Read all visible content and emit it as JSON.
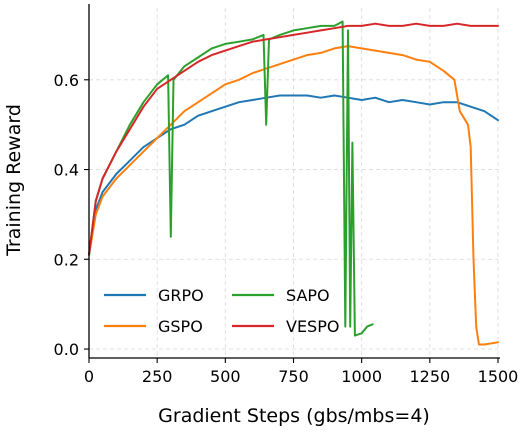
{
  "chart_data": {
    "type": "line",
    "xlabel": "Gradient Steps (gbs/mbs=4)",
    "ylabel": "Training Reward",
    "xlim": [
      0,
      1500
    ],
    "ylim": [
      -0.02,
      0.76
    ],
    "xticks": [
      0,
      250,
      500,
      750,
      1000,
      1250,
      1500
    ],
    "yticks": [
      0.0,
      0.2,
      0.4,
      0.6
    ],
    "xtick_labels": [
      "0",
      "250",
      "500",
      "750",
      "1000",
      "1250",
      "1500"
    ],
    "ytick_labels": [
      "0.0",
      "0.2",
      "0.4",
      "0.6"
    ],
    "grid": true,
    "legend_position": "lower-left",
    "series": [
      {
        "name": "GRPO",
        "color": "#1f77b4",
        "points": [
          [
            0,
            0.21
          ],
          [
            25,
            0.31
          ],
          [
            50,
            0.35
          ],
          [
            100,
            0.39
          ],
          [
            150,
            0.42
          ],
          [
            200,
            0.45
          ],
          [
            250,
            0.47
          ],
          [
            300,
            0.49
          ],
          [
            350,
            0.5
          ],
          [
            400,
            0.52
          ],
          [
            450,
            0.53
          ],
          [
            500,
            0.54
          ],
          [
            550,
            0.55
          ],
          [
            600,
            0.555
          ],
          [
            650,
            0.56
          ],
          [
            700,
            0.565
          ],
          [
            750,
            0.565
          ],
          [
            800,
            0.565
          ],
          [
            850,
            0.56
          ],
          [
            900,
            0.565
          ],
          [
            950,
            0.56
          ],
          [
            1000,
            0.555
          ],
          [
            1050,
            0.56
          ],
          [
            1100,
            0.55
          ],
          [
            1150,
            0.555
          ],
          [
            1200,
            0.55
          ],
          [
            1250,
            0.545
          ],
          [
            1300,
            0.55
          ],
          [
            1350,
            0.55
          ],
          [
            1400,
            0.54
          ],
          [
            1450,
            0.53
          ],
          [
            1500,
            0.51
          ]
        ]
      },
      {
        "name": "GSPO",
        "color": "#ff7f0e",
        "points": [
          [
            0,
            0.21
          ],
          [
            25,
            0.3
          ],
          [
            50,
            0.34
          ],
          [
            100,
            0.38
          ],
          [
            150,
            0.41
          ],
          [
            200,
            0.44
          ],
          [
            250,
            0.47
          ],
          [
            300,
            0.5
          ],
          [
            350,
            0.53
          ],
          [
            400,
            0.55
          ],
          [
            450,
            0.57
          ],
          [
            500,
            0.59
          ],
          [
            550,
            0.6
          ],
          [
            600,
            0.615
          ],
          [
            650,
            0.625
          ],
          [
            700,
            0.635
          ],
          [
            750,
            0.645
          ],
          [
            800,
            0.655
          ],
          [
            850,
            0.66
          ],
          [
            900,
            0.67
          ],
          [
            950,
            0.675
          ],
          [
            1000,
            0.67
          ],
          [
            1050,
            0.665
          ],
          [
            1100,
            0.66
          ],
          [
            1150,
            0.655
          ],
          [
            1200,
            0.645
          ],
          [
            1250,
            0.64
          ],
          [
            1300,
            0.62
          ],
          [
            1340,
            0.6
          ],
          [
            1360,
            0.53
          ],
          [
            1390,
            0.5
          ],
          [
            1400,
            0.45
          ],
          [
            1410,
            0.2
          ],
          [
            1420,
            0.05
          ],
          [
            1430,
            0.01
          ],
          [
            1450,
            0.01
          ],
          [
            1500,
            0.015
          ]
        ]
      },
      {
        "name": "SAPO",
        "color": "#2ca02c",
        "points": [
          [
            0,
            0.21
          ],
          [
            25,
            0.33
          ],
          [
            50,
            0.38
          ],
          [
            100,
            0.44
          ],
          [
            150,
            0.5
          ],
          [
            200,
            0.55
          ],
          [
            250,
            0.59
          ],
          [
            290,
            0.61
          ],
          [
            300,
            0.25
          ],
          [
            310,
            0.6
          ],
          [
            350,
            0.63
          ],
          [
            400,
            0.65
          ],
          [
            450,
            0.67
          ],
          [
            500,
            0.68
          ],
          [
            550,
            0.685
          ],
          [
            600,
            0.69
          ],
          [
            640,
            0.7
          ],
          [
            650,
            0.5
          ],
          [
            660,
            0.69
          ],
          [
            700,
            0.7
          ],
          [
            750,
            0.71
          ],
          [
            800,
            0.715
          ],
          [
            850,
            0.72
          ],
          [
            900,
            0.72
          ],
          [
            930,
            0.73
          ],
          [
            940,
            0.05
          ],
          [
            950,
            0.71
          ],
          [
            958,
            0.05
          ],
          [
            966,
            0.46
          ],
          [
            975,
            0.03
          ],
          [
            1000,
            0.035
          ],
          [
            1020,
            0.05
          ],
          [
            1040,
            0.055
          ]
        ]
      },
      {
        "name": "VESPO",
        "color": "#d62728",
        "points": [
          [
            0,
            0.21
          ],
          [
            25,
            0.33
          ],
          [
            50,
            0.38
          ],
          [
            100,
            0.44
          ],
          [
            150,
            0.49
          ],
          [
            200,
            0.54
          ],
          [
            250,
            0.58
          ],
          [
            300,
            0.6
          ],
          [
            350,
            0.62
          ],
          [
            400,
            0.64
          ],
          [
            450,
            0.655
          ],
          [
            500,
            0.665
          ],
          [
            550,
            0.675
          ],
          [
            600,
            0.685
          ],
          [
            650,
            0.69
          ],
          [
            700,
            0.695
          ],
          [
            750,
            0.7
          ],
          [
            800,
            0.705
          ],
          [
            850,
            0.71
          ],
          [
            900,
            0.715
          ],
          [
            950,
            0.72
          ],
          [
            1000,
            0.72
          ],
          [
            1050,
            0.725
          ],
          [
            1100,
            0.72
          ],
          [
            1150,
            0.72
          ],
          [
            1200,
            0.725
          ],
          [
            1250,
            0.72
          ],
          [
            1300,
            0.72
          ],
          [
            1350,
            0.725
          ],
          [
            1400,
            0.72
          ],
          [
            1450,
            0.72
          ],
          [
            1500,
            0.72
          ]
        ]
      }
    ]
  }
}
